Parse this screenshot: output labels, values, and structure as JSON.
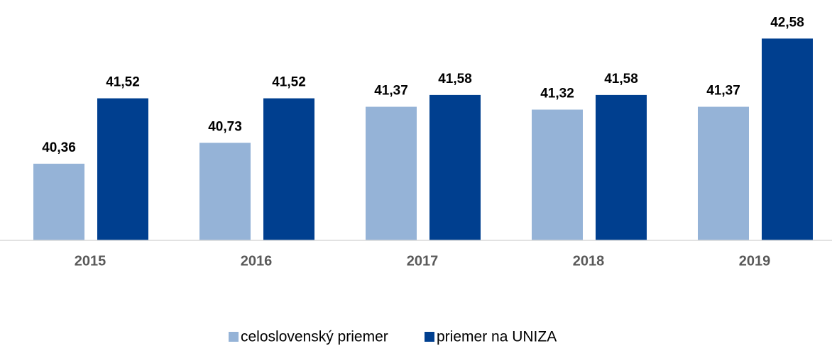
{
  "chart_data": {
    "type": "bar",
    "categories": [
      "2015",
      "2016",
      "2017",
      "2018",
      "2019"
    ],
    "series": [
      {
        "name": "celoslovenský priemer",
        "color": "#95b3d7",
        "values": [
          40.36,
          40.73,
          41.37,
          41.32,
          41.37
        ],
        "value_labels": [
          "40,36",
          "40,73",
          "41,37",
          "41,32",
          "41,37"
        ]
      },
      {
        "name": "priemer na UNIZA",
        "color": "#003f8f",
        "values": [
          41.52,
          41.52,
          41.58,
          41.58,
          42.58
        ],
        "value_labels": [
          "41,52",
          "41,52",
          "41,58",
          "41,58",
          "42,58"
        ]
      }
    ],
    "ylim": [
      39,
      43
    ],
    "legend": "bottom"
  }
}
